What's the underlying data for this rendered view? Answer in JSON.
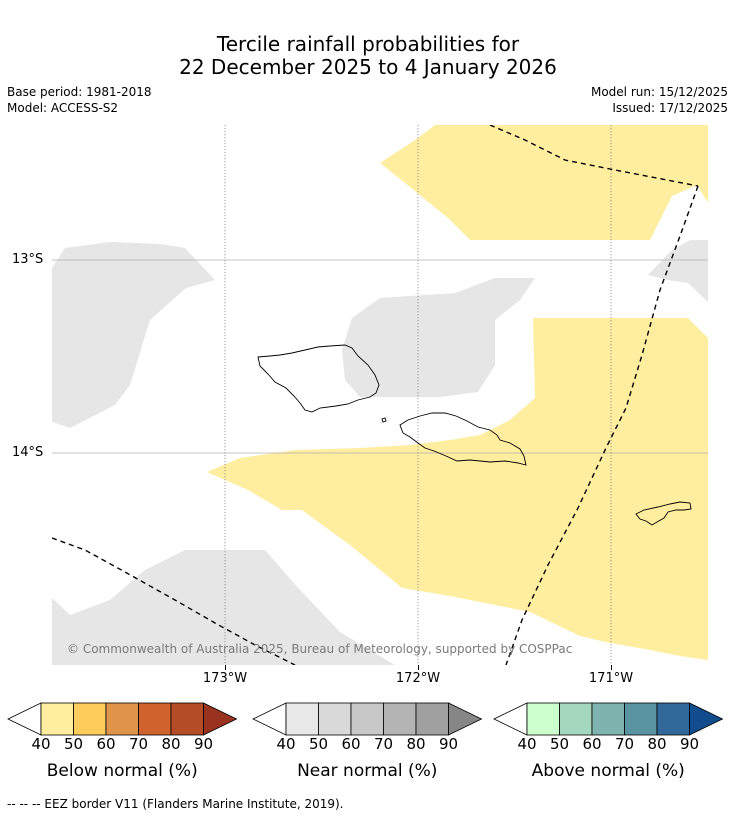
{
  "title": {
    "line1": "Tercile rainfall probabilities for",
    "line2": "22 December 2025 to 4 January 2026"
  },
  "meta": {
    "base_period": "Base period: 1981-2018",
    "model": "Model: ACCESS-S2",
    "model_run": "Model run: 15/12/2025",
    "issued": "Issued: 17/12/2025"
  },
  "map": {
    "lat_labels": [
      "13°S",
      "14°S"
    ],
    "lon_labels": [
      "173°W",
      "172°W",
      "171°W"
    ],
    "copyright": "© Commonwealth of Australia 2025, Bureau of Meteorology, supported by COSPPac"
  },
  "colorbars": [
    {
      "label": "Below normal (%)",
      "ticks": [
        "40",
        "50",
        "60",
        "70",
        "80",
        "90"
      ],
      "colors": [
        "#ffffff",
        "#ffeda0",
        "#fecc5c",
        "#e0944a",
        "#d0622e",
        "#b34c27",
        "#993320"
      ]
    },
    {
      "label": "Near normal (%)",
      "ticks": [
        "40",
        "50",
        "60",
        "70",
        "80",
        "90"
      ],
      "colors": [
        "#ffffff",
        "#e8e8e8",
        "#d9d9d9",
        "#c8c8c8",
        "#b4b4b4",
        "#a0a0a0",
        "#868686"
      ]
    },
    {
      "label": "Above normal (%)",
      "ticks": [
        "40",
        "50",
        "60",
        "70",
        "80",
        "90"
      ],
      "colors": [
        "#ffffff",
        "#ccffcc",
        "#a3d7be",
        "#7eb3b0",
        "#5a93a2",
        "#326799",
        "#114d8c"
      ]
    }
  ],
  "footer": {
    "eez_legend": "--  --  -- EEZ border V11 (Flanders Marine Institute, 2019)."
  }
}
